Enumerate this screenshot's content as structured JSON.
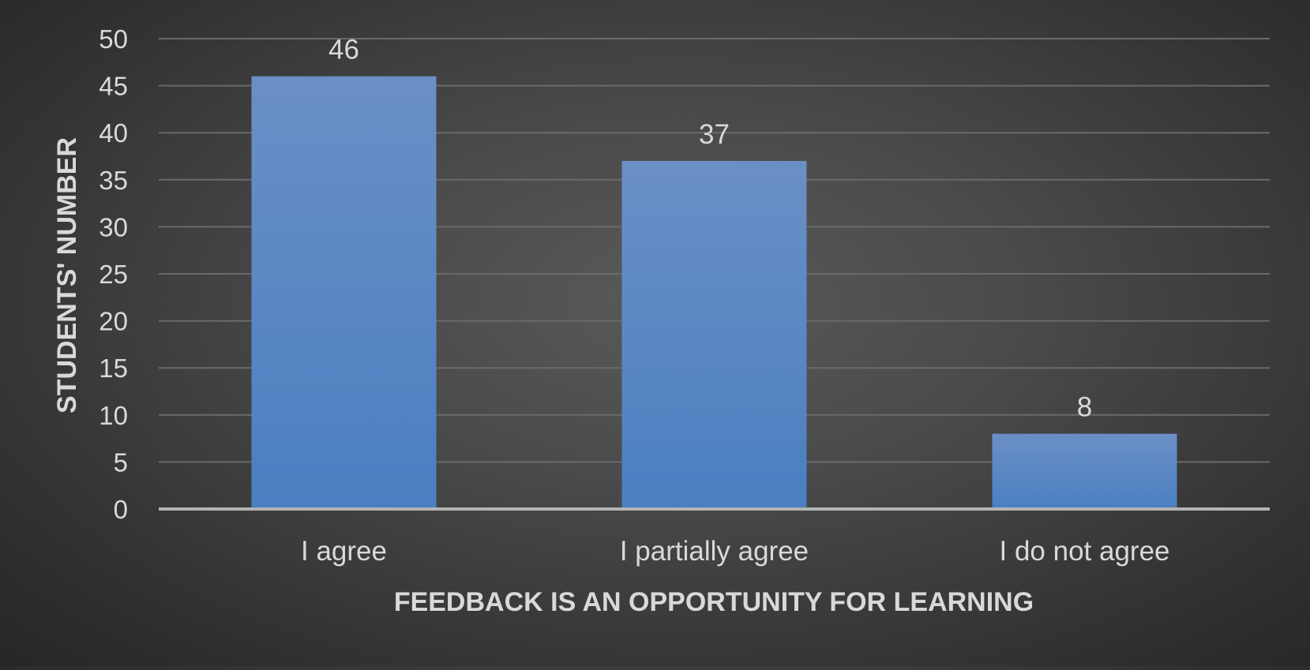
{
  "chart_data": {
    "type": "bar",
    "title": "",
    "xlabel": "FEEDBACK IS AN OPPORTUNITY FOR LEARNING",
    "ylabel": "STUDENTS' NUMBER",
    "categories": [
      "I agree",
      "I partially agree",
      "I do not agree"
    ],
    "values": [
      46,
      37,
      8
    ],
    "ylim": [
      0,
      50
    ],
    "yticks": [
      0,
      5,
      10,
      15,
      20,
      25,
      30,
      35,
      40,
      45,
      50
    ],
    "grid": true,
    "legend": "none",
    "data_labels": true,
    "colors": {
      "bar_top": "#6b8fc6",
      "bar_bottom": "#4a7fc1",
      "text": "#d9d9d9",
      "grid": "#6a6a6a",
      "baseline": "#b3b3b3"
    }
  }
}
